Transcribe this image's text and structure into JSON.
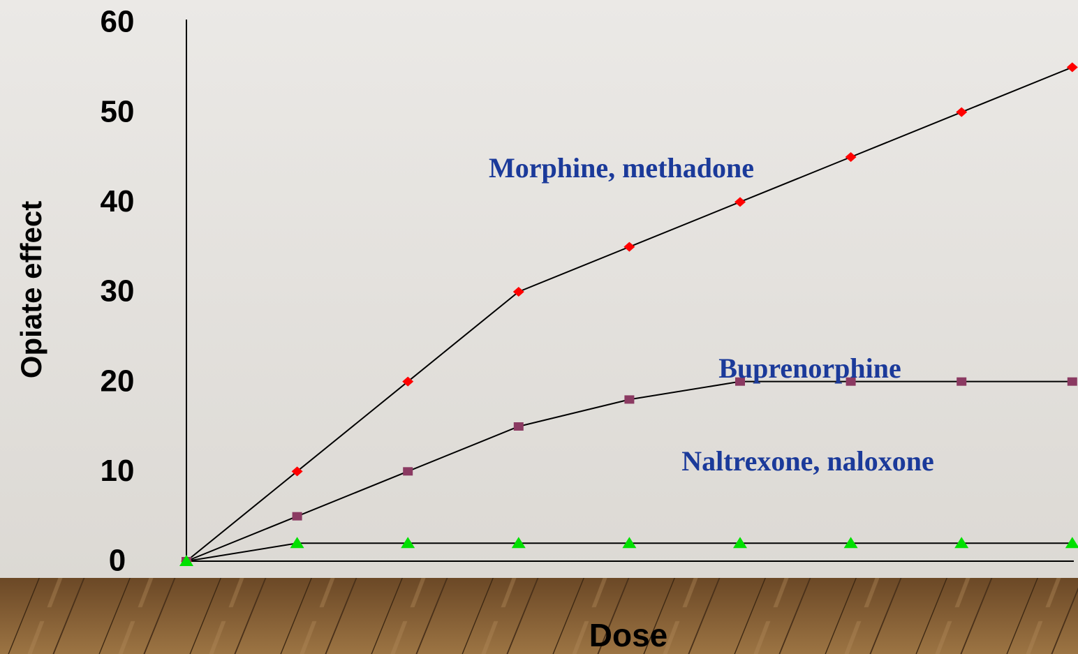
{
  "chart_data": {
    "type": "line",
    "y_label": "Opiate effect",
    "x_label": "Dose",
    "categories": [
      null,
      null,
      null,
      null,
      null,
      null,
      null,
      null,
      null
    ],
    "series": [
      {
        "name": "Morphine, methadone",
        "color": "#ff0000",
        "marker": "diamond",
        "values": [
          0,
          10,
          20,
          30,
          35,
          40,
          45,
          50,
          55
        ]
      },
      {
        "name": "Buprenorphine",
        "color": "#8b3a62",
        "marker": "square",
        "values": [
          0,
          5,
          10,
          15,
          18,
          20,
          20,
          20,
          20
        ]
      },
      {
        "name": "Naltrexone, naloxone",
        "color": "#00e000",
        "marker": "triangle",
        "values": [
          0,
          2,
          2,
          2,
          2,
          2,
          2,
          2,
          2
        ]
      }
    ],
    "ylim": [
      0,
      60
    ],
    "yticks": [
      0,
      10,
      20,
      30,
      40,
      50,
      60
    ],
    "grid": false
  }
}
